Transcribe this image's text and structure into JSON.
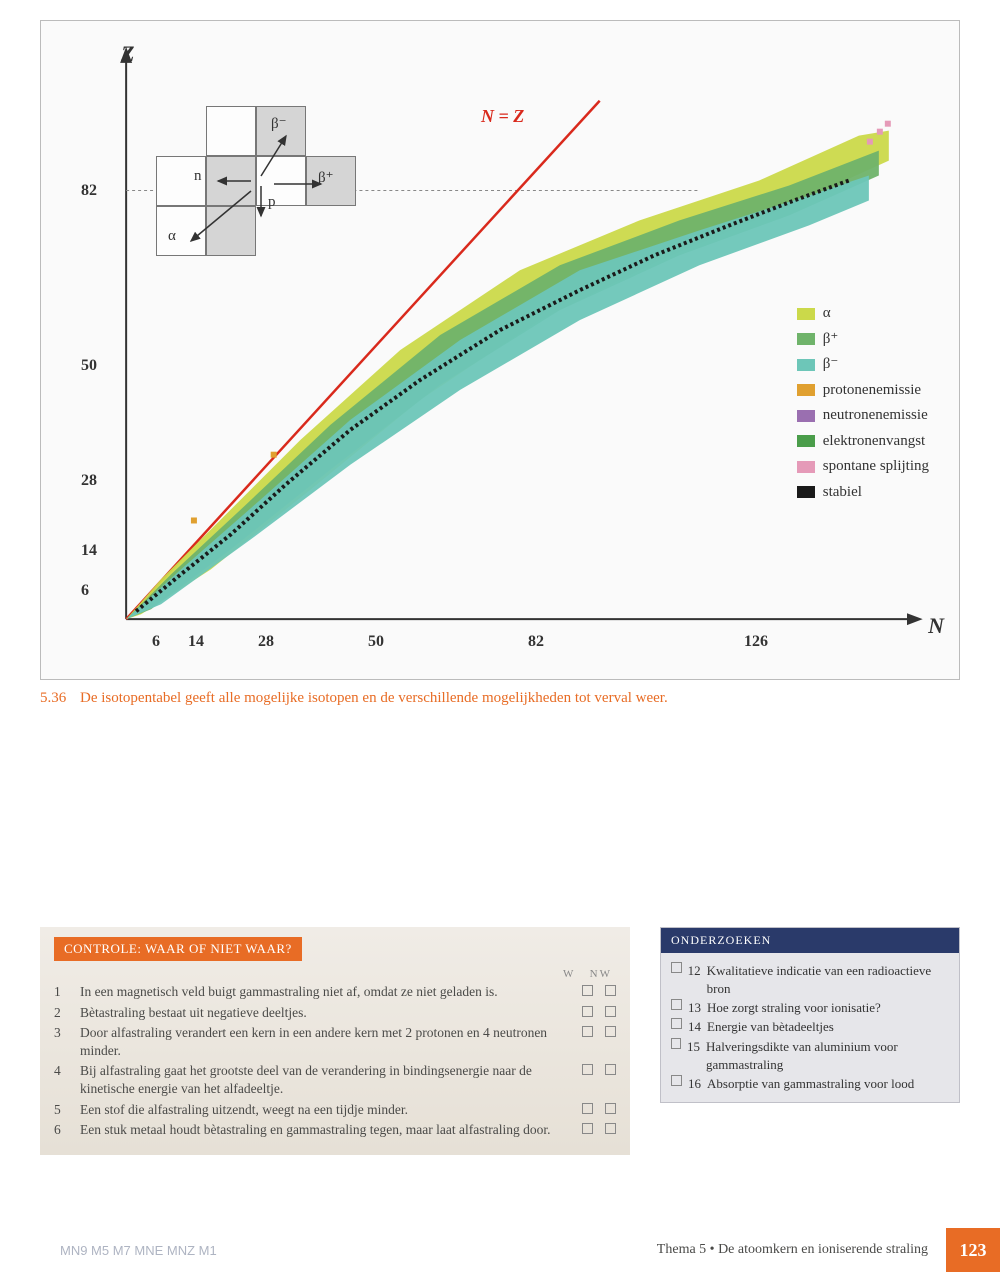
{
  "chart": {
    "type": "scatter-region",
    "y_axis_label": "Z",
    "x_axis_label": "N",
    "nz_line_label": "N = Z",
    "y_ticks": [
      6,
      14,
      28,
      50,
      82
    ],
    "x_ticks": [
      6,
      14,
      28,
      50,
      82,
      126
    ],
    "xlim": [
      0,
      160
    ],
    "ylim": [
      0,
      110
    ],
    "nz_line_color": "#d9291c",
    "background_color": "#fafafa",
    "axis_color": "#333333",
    "stable_band": {
      "color_top_alpha": "#cbd94a",
      "color_mid_green": "#6fb36a",
      "color_teal": "#6dc6b8",
      "color_black": "#1a1a1a"
    },
    "legend": [
      {
        "label": "α",
        "color": "#cbd94a"
      },
      {
        "label": "β⁺",
        "color": "#6fb36a"
      },
      {
        "label": "β⁻",
        "color": "#6dc6b8"
      },
      {
        "label": "protonenemissie",
        "color": "#e0a030"
      },
      {
        "label": "neutronenemissie",
        "color": "#9a6fb0"
      },
      {
        "label": "elektronenvangst",
        "color": "#4a9d4a"
      },
      {
        "label": "spontane splijting",
        "color": "#e59ab8"
      },
      {
        "label": "stabiel",
        "color": "#1a1a1a"
      }
    ],
    "inset": {
      "labels": {
        "beta_minus": "β⁻",
        "n": "n",
        "p": "p",
        "beta_plus": "β⁺",
        "alpha": "α"
      }
    }
  },
  "caption": {
    "number": "5.36",
    "text": "De isotopentabel geeft alle mogelijke isotopen en de verschillende mogelijkheden tot verval weer."
  },
  "control": {
    "header": "CONTROLE: WAAR OF NIET WAAR?",
    "col_w": "W",
    "col_nw": "NW",
    "questions": [
      {
        "n": "1",
        "t": "In een magnetisch veld buigt gammastraling niet af, omdat ze niet geladen is."
      },
      {
        "n": "2",
        "t": "Bètastraling bestaat uit negatieve deeltjes."
      },
      {
        "n": "3",
        "t": "Door alfastraling verandert een kern in een andere kern met 2 protonen en 4 neutronen minder."
      },
      {
        "n": "4",
        "t": "Bij alfastraling gaat het grootste deel van de verandering in bindingsenergie naar de kinetische energie van het alfadeeltje."
      },
      {
        "n": "5",
        "t": "Een stof die alfastraling uitzendt, weegt na een tijdje minder."
      },
      {
        "n": "6",
        "t": "Een stuk metaal houdt bètastraling en gammastraling tegen, maar laat alfastraling door."
      }
    ]
  },
  "onderzoeken": {
    "header": "ONDERZOEKEN",
    "items": [
      {
        "n": "12",
        "t": "Kwalitatieve indicatie van een radioactieve bron"
      },
      {
        "n": "13",
        "t": "Hoe zorgt straling voor ionisatie?"
      },
      {
        "n": "14",
        "t": "Energie van bètadeeltjes"
      },
      {
        "n": "15",
        "t": "Halveringsdikte van aluminium voor gammastraling"
      },
      {
        "n": "16",
        "t": "Absorptie van gammastraling voor lood"
      }
    ]
  },
  "footer": {
    "left_codes": "MN9 M5 M7 MNE MNZ M1",
    "theme": "Thema 5 • De atoomkern en ioniserende straling",
    "page": "123"
  },
  "colors": {
    "accent_orange": "#e86c25",
    "header_blue": "#2a3a6a"
  }
}
